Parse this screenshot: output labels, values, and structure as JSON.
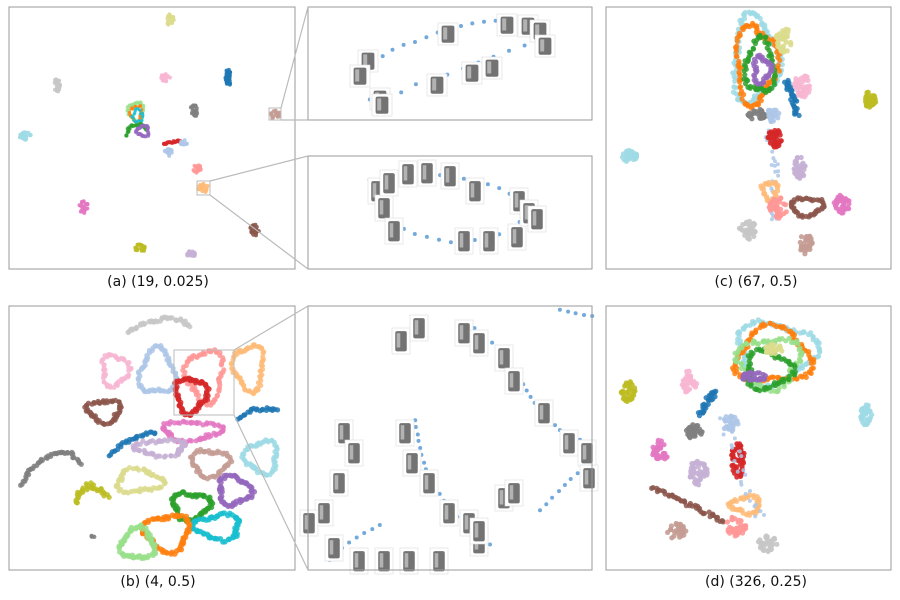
{
  "panels": {
    "a": {
      "caption": "(a) (19, 0.025)"
    },
    "b": {
      "caption": "(b) (4, 0.5)"
    },
    "c": {
      "caption": "(c) (67, 0.5)"
    },
    "d": {
      "caption": "(d) (326, 0.25)"
    }
  },
  "colors": {
    "blue": "#1f77b4",
    "lightblue": "#aec7e8",
    "orange": "#ff7f0e",
    "lightorange": "#ffbb78",
    "green": "#2ca02c",
    "lightgreen": "#98df8a",
    "red": "#d62728",
    "pink": "#ff9896",
    "purple": "#9467bd",
    "lavender": "#c5b0d5",
    "brown": "#8c564b",
    "rosybrown": "#c49c94",
    "magenta": "#e377c2",
    "lightmagenta": "#f7b6d2",
    "gray": "#7f7f7f",
    "lightgray": "#c7c7c7",
    "olive": "#bcbd22",
    "khaki": "#dbdb8d",
    "cyan": "#17becf",
    "lightcyan": "#9edae5",
    "frame": "#999999",
    "zoomline": "#bbbbbb",
    "dotblue": "#5b9bd5",
    "thumb": "#5a5a5a"
  }
}
